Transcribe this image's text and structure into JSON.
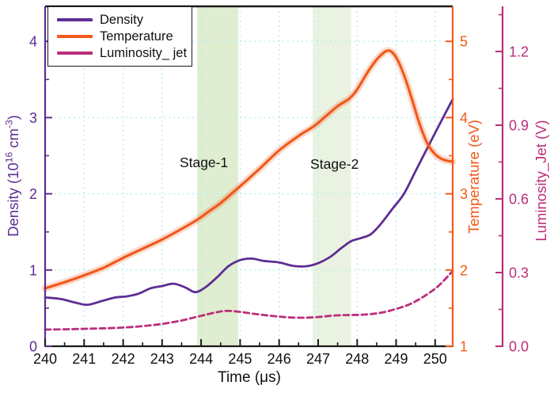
{
  "legend": {
    "items": [
      {
        "label": "Density",
        "color": "#5e2d94"
      },
      {
        "label": "Temperature",
        "color": "#f2591b"
      },
      {
        "label": "Luminosity_ jet",
        "color": "#bb2e7a"
      }
    ]
  },
  "chart_data": {
    "type": "line",
    "title": "",
    "xlabel": "Time (μs)",
    "xlim": [
      240,
      250.45
    ],
    "x_ticks": [
      240,
      241,
      242,
      243,
      244,
      245,
      246,
      247,
      248,
      249,
      250
    ],
    "x_minor_step": 0.5,
    "grid_color": "#b9edf0",
    "frame_color": "#1a1a1a",
    "grid": "dotted cyan, vertical at each µs and horizontal at each density unit",
    "legend_position": "top-left",
    "axes": {
      "density": {
        "side": "left",
        "label_parts": {
          "pre": "Density (10",
          "sup1": "16",
          "mid": " cm",
          "sup2": "-3",
          "post": ")"
        },
        "color": "#5e2d94",
        "lim": [
          0,
          4.46
        ],
        "ticks": [
          0,
          1,
          2,
          3,
          4
        ],
        "minor_step": 0.5,
        "decimals": 0
      },
      "temperature": {
        "side": "right",
        "label": "Temperature (eV)",
        "color": "#f2591b",
        "lim": [
          1,
          5.46
        ],
        "ticks": [
          1,
          2,
          3,
          4,
          5
        ],
        "minor_step": 0.5,
        "decimals": 0
      },
      "luminosity": {
        "side": "far-right",
        "label": "Luminosity_Jet (V)",
        "color": "#bb2e7a",
        "lim": [
          0,
          1.384
        ],
        "ticks": [
          0,
          0.3,
          0.6,
          0.9,
          1.2
        ],
        "minor_step": 0.15,
        "decimals": 1
      }
    },
    "bands": [
      {
        "label": "Stage-1",
        "from": 243.9,
        "to": 244.95,
        "color": "#d9eac8",
        "opacity": 0.85,
        "label_t": 244.07,
        "label_value": 2.41
      },
      {
        "label": "Stage-2",
        "from": 246.86,
        "to": 247.84,
        "color": "#d9eac8",
        "opacity": 0.55,
        "label_t": 247.42,
        "label_value": 2.39
      }
    ],
    "series": [
      {
        "name": "Density",
        "axis": "density",
        "color": "#5e2d94",
        "line_style": "solid",
        "width": 2.8,
        "error_band": false,
        "points": [
          [
            240,
            0.64
          ],
          [
            240.4,
            0.62
          ],
          [
            240.8,
            0.57
          ],
          [
            241.1,
            0.545
          ],
          [
            241.5,
            0.6
          ],
          [
            241.8,
            0.64
          ],
          [
            242.1,
            0.655
          ],
          [
            242.4,
            0.69
          ],
          [
            242.7,
            0.76
          ],
          [
            243,
            0.79
          ],
          [
            243.3,
            0.82
          ],
          [
            243.6,
            0.77
          ],
          [
            243.85,
            0.71
          ],
          [
            244.1,
            0.77
          ],
          [
            244.4,
            0.9
          ],
          [
            244.7,
            1.05
          ],
          [
            245,
            1.13
          ],
          [
            245.3,
            1.15
          ],
          [
            245.6,
            1.12
          ],
          [
            246,
            1.1
          ],
          [
            246.35,
            1.055
          ],
          [
            246.7,
            1.05
          ],
          [
            247,
            1.09
          ],
          [
            247.3,
            1.17
          ],
          [
            247.6,
            1.29
          ],
          [
            247.85,
            1.38
          ],
          [
            248.1,
            1.42
          ],
          [
            248.35,
            1.47
          ],
          [
            248.6,
            1.6
          ],
          [
            248.9,
            1.8
          ],
          [
            249.2,
            2.0
          ],
          [
            249.5,
            2.3
          ],
          [
            249.8,
            2.6
          ],
          [
            250.1,
            2.9
          ],
          [
            250.45,
            3.24
          ]
        ]
      },
      {
        "name": "Temperature",
        "axis": "temperature",
        "color": "#f2591b",
        "line_style": "solid",
        "width": 3.2,
        "error_band": true,
        "points": [
          [
            240,
            1.76
          ],
          [
            240.5,
            1.84
          ],
          [
            241,
            1.93
          ],
          [
            241.5,
            2.03
          ],
          [
            242,
            2.16
          ],
          [
            242.5,
            2.28
          ],
          [
            243,
            2.4
          ],
          [
            243.5,
            2.54
          ],
          [
            243.9,
            2.66
          ],
          [
            244.2,
            2.77
          ],
          [
            244.5,
            2.88
          ],
          [
            245,
            3.1
          ],
          [
            245.5,
            3.33
          ],
          [
            246,
            3.57
          ],
          [
            246.5,
            3.76
          ],
          [
            246.9,
            3.89
          ],
          [
            247.2,
            4.02
          ],
          [
            247.5,
            4.15
          ],
          [
            247.8,
            4.25
          ],
          [
            248,
            4.37
          ],
          [
            248.3,
            4.62
          ],
          [
            248.55,
            4.79
          ],
          [
            248.8,
            4.88
          ],
          [
            249,
            4.79
          ],
          [
            249.2,
            4.56
          ],
          [
            249.4,
            4.25
          ],
          [
            249.6,
            3.92
          ],
          [
            249.8,
            3.66
          ],
          [
            250,
            3.52
          ],
          [
            250.2,
            3.45
          ],
          [
            250.45,
            3.42
          ]
        ]
      },
      {
        "name": "Luminosity_ jet",
        "axis": "luminosity",
        "color": "#bb2e7a",
        "line_style": "dashed",
        "width": 2.8,
        "error_band": false,
        "points": [
          [
            240,
            0.068
          ],
          [
            240.5,
            0.069
          ],
          [
            241,
            0.071
          ],
          [
            241.5,
            0.073
          ],
          [
            242,
            0.076
          ],
          [
            242.5,
            0.082
          ],
          [
            243,
            0.091
          ],
          [
            243.5,
            0.105
          ],
          [
            244,
            0.124
          ],
          [
            244.35,
            0.137
          ],
          [
            244.65,
            0.144
          ],
          [
            245,
            0.14
          ],
          [
            245.4,
            0.131
          ],
          [
            245.8,
            0.124
          ],
          [
            246.2,
            0.118
          ],
          [
            246.6,
            0.116
          ],
          [
            247,
            0.119
          ],
          [
            247.4,
            0.125
          ],
          [
            247.8,
            0.127
          ],
          [
            248.2,
            0.129
          ],
          [
            248.6,
            0.136
          ],
          [
            249,
            0.152
          ],
          [
            249.4,
            0.175
          ],
          [
            249.8,
            0.212
          ],
          [
            250.1,
            0.248
          ],
          [
            250.45,
            0.306
          ]
        ]
      }
    ]
  }
}
